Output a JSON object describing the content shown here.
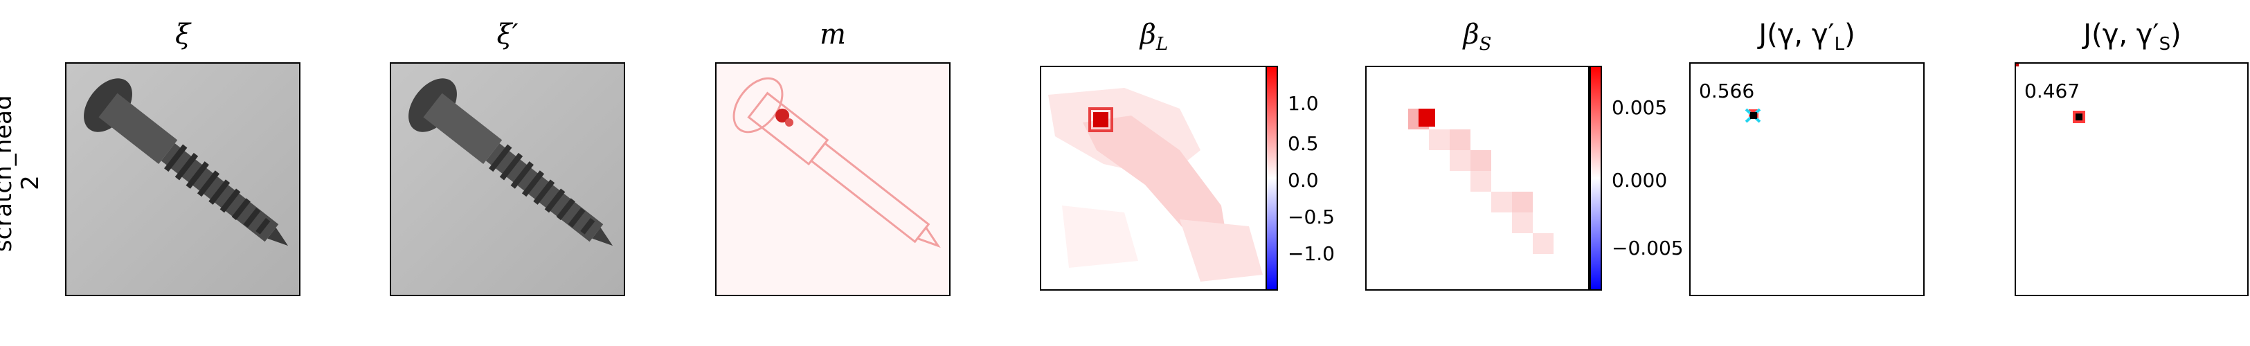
{
  "row_label_line1": "scratch_head",
  "row_label_line2": "2",
  "panels": {
    "xi": {
      "title": "ξ"
    },
    "xi_prime": {
      "title": "ξ′"
    },
    "m": {
      "title": "m"
    },
    "beta_L": {
      "title_main": "β",
      "title_sub": "L",
      "colorbar_ticks": [
        "1.0",
        "0.5",
        "0.0",
        "−0.5",
        "−1.0"
      ]
    },
    "beta_S": {
      "title_main": "β",
      "title_sub": "S",
      "colorbar_ticks": [
        "0.005",
        "0.000",
        "−0.005"
      ]
    },
    "J_L": {
      "title": "J(γ, γ′",
      "title_sub": "L",
      "title_end": ")",
      "value": "0.566"
    },
    "J_S": {
      "title": "J(γ, γ′",
      "title_sub": "S",
      "title_end": ")",
      "value": "0.467"
    }
  },
  "colors": {
    "positive": "#ff0000",
    "zero": "#ffffff",
    "negative": "#0000ff",
    "marker_cyan": "#22d3ee"
  }
}
